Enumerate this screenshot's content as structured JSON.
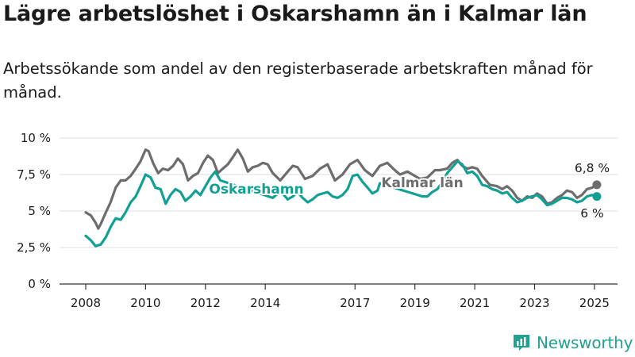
{
  "title": "Lägre arbetslöshet i Oskarshamn än i Kalmar län",
  "subtitle": "Arbetssökande som andel av den registerbaserade arbetskraften månad för månad.",
  "brand": {
    "name": "Newsworthy",
    "icon": "bar-chart-logo-icon",
    "color": "#22a090"
  },
  "colors": {
    "oskarshamn": "#13a094",
    "kalmar": "#6d6d6d",
    "grid": "#dcdcdc",
    "axis": "#333333"
  },
  "chart_data": {
    "type": "line",
    "title": "Lägre arbetslöshet i Oskarshamn än i Kalmar län",
    "subtitle": "Arbetssökande som andel av den registerbaserade arbetskraften månad för månad.",
    "xlabel": "",
    "ylabel": "",
    "x_range": [
      2008.0,
      2025.25
    ],
    "ylim": [
      0,
      10
    ],
    "y_ticks": [
      0,
      2.5,
      5,
      7.5,
      10
    ],
    "y_tick_labels": [
      "0 %",
      "2,5 %",
      "5 %",
      "7,5 %",
      "10 %"
    ],
    "x_ticks": [
      2008,
      2010,
      2012,
      2014,
      2017,
      2019,
      2021,
      2023,
      2025
    ],
    "x_tick_labels": [
      "2008",
      "2010",
      "2012",
      "2014",
      "2017",
      "2019",
      "2021",
      "2023",
      "2025"
    ],
    "grid": true,
    "legend": "inline labels",
    "series": [
      {
        "name": "Kalmar län",
        "color": "#6d6d6d",
        "end_label": "6,8 %",
        "points": [
          [
            2008.0,
            4.9
          ],
          [
            2008.17,
            4.7
          ],
          [
            2008.33,
            4.2
          ],
          [
            2008.42,
            3.8
          ],
          [
            2008.5,
            4.1
          ],
          [
            2008.67,
            4.9
          ],
          [
            2008.83,
            5.6
          ],
          [
            2009.0,
            6.6
          ],
          [
            2009.17,
            7.1
          ],
          [
            2009.33,
            7.1
          ],
          [
            2009.5,
            7.4
          ],
          [
            2009.67,
            7.9
          ],
          [
            2009.83,
            8.4
          ],
          [
            2010.0,
            9.2
          ],
          [
            2010.1,
            9.1
          ],
          [
            2010.25,
            8.3
          ],
          [
            2010.42,
            7.6
          ],
          [
            2010.58,
            7.9
          ],
          [
            2010.75,
            7.8
          ],
          [
            2010.92,
            8.1
          ],
          [
            2011.08,
            8.6
          ],
          [
            2011.25,
            8.2
          ],
          [
            2011.42,
            7.1
          ],
          [
            2011.58,
            7.4
          ],
          [
            2011.75,
            7.6
          ],
          [
            2011.92,
            8.3
          ],
          [
            2012.08,
            8.8
          ],
          [
            2012.25,
            8.5
          ],
          [
            2012.42,
            7.6
          ],
          [
            2012.58,
            7.9
          ],
          [
            2012.75,
            8.2
          ],
          [
            2012.92,
            8.7
          ],
          [
            2013.08,
            9.2
          ],
          [
            2013.25,
            8.6
          ],
          [
            2013.42,
            7.7
          ],
          [
            2013.58,
            8.0
          ],
          [
            2013.75,
            8.1
          ],
          [
            2013.92,
            8.3
          ],
          [
            2014.08,
            8.2
          ],
          [
            2014.25,
            7.6
          ],
          [
            2014.5,
            7.1
          ],
          [
            2014.75,
            7.7
          ],
          [
            2014.92,
            8.1
          ],
          [
            2015.08,
            8.0
          ],
          [
            2015.33,
            7.2
          ],
          [
            2015.58,
            7.4
          ],
          [
            2015.83,
            7.9
          ],
          [
            2016.08,
            8.2
          ],
          [
            2016.33,
            7.1
          ],
          [
            2016.58,
            7.5
          ],
          [
            2016.83,
            8.2
          ],
          [
            2017.08,
            8.5
          ],
          [
            2017.33,
            7.8
          ],
          [
            2017.58,
            7.4
          ],
          [
            2017.83,
            8.1
          ],
          [
            2018.08,
            8.3
          ],
          [
            2018.33,
            7.8
          ],
          [
            2018.5,
            7.5
          ],
          [
            2018.75,
            7.7
          ],
          [
            2018.92,
            7.5
          ],
          [
            2019.17,
            7.2
          ],
          [
            2019.42,
            7.3
          ],
          [
            2019.67,
            7.8
          ],
          [
            2019.83,
            7.8
          ],
          [
            2020.08,
            7.9
          ],
          [
            2020.25,
            8.3
          ],
          [
            2020.42,
            8.5
          ],
          [
            2020.58,
            8.1
          ],
          [
            2020.75,
            7.9
          ],
          [
            2020.92,
            8.0
          ],
          [
            2021.08,
            7.9
          ],
          [
            2021.25,
            7.4
          ],
          [
            2021.5,
            6.8
          ],
          [
            2021.75,
            6.7
          ],
          [
            2021.92,
            6.5
          ],
          [
            2022.08,
            6.7
          ],
          [
            2022.25,
            6.4
          ],
          [
            2022.42,
            5.9
          ],
          [
            2022.58,
            5.7
          ],
          [
            2022.75,
            6.0
          ],
          [
            2022.92,
            5.9
          ],
          [
            2023.08,
            6.2
          ],
          [
            2023.25,
            6.0
          ],
          [
            2023.42,
            5.5
          ],
          [
            2023.58,
            5.6
          ],
          [
            2023.75,
            5.9
          ],
          [
            2023.92,
            6.1
          ],
          [
            2024.08,
            6.4
          ],
          [
            2024.25,
            6.3
          ],
          [
            2024.42,
            5.9
          ],
          [
            2024.58,
            6.1
          ],
          [
            2024.75,
            6.5
          ],
          [
            2024.92,
            6.6
          ],
          [
            2025.08,
            6.8
          ]
        ]
      },
      {
        "name": "Oskarshamn",
        "color": "#13a094",
        "end_label": "6 %",
        "points": [
          [
            2008.0,
            3.3
          ],
          [
            2008.17,
            3.0
          ],
          [
            2008.33,
            2.6
          ],
          [
            2008.5,
            2.7
          ],
          [
            2008.67,
            3.2
          ],
          [
            2008.83,
            3.9
          ],
          [
            2009.0,
            4.5
          ],
          [
            2009.17,
            4.4
          ],
          [
            2009.33,
            4.9
          ],
          [
            2009.5,
            5.6
          ],
          [
            2009.67,
            6.0
          ],
          [
            2009.83,
            6.7
          ],
          [
            2010.0,
            7.5
          ],
          [
            2010.17,
            7.3
          ],
          [
            2010.33,
            6.6
          ],
          [
            2010.5,
            6.5
          ],
          [
            2010.67,
            5.5
          ],
          [
            2010.83,
            6.1
          ],
          [
            2011.0,
            6.5
          ],
          [
            2011.17,
            6.3
          ],
          [
            2011.33,
            5.7
          ],
          [
            2011.5,
            6.0
          ],
          [
            2011.67,
            6.4
          ],
          [
            2011.83,
            6.1
          ],
          [
            2012.0,
            6.7
          ],
          [
            2012.17,
            7.3
          ],
          [
            2012.33,
            7.7
          ],
          [
            2012.5,
            7.1
          ],
          [
            2014.25,
            5.9
          ],
          [
            2014.42,
            6.2
          ],
          [
            2014.58,
            6.2
          ],
          [
            2014.75,
            5.8
          ],
          [
            2014.92,
            6.0
          ],
          [
            2015.08,
            6.3
          ],
          [
            2015.25,
            5.9
          ],
          [
            2015.42,
            5.6
          ],
          [
            2015.58,
            5.8
          ],
          [
            2015.75,
            6.1
          ],
          [
            2015.92,
            6.2
          ],
          [
            2016.08,
            6.3
          ],
          [
            2016.25,
            6.0
          ],
          [
            2016.42,
            5.9
          ],
          [
            2016.58,
            6.1
          ],
          [
            2016.75,
            6.5
          ],
          [
            2016.92,
            7.4
          ],
          [
            2017.08,
            7.5
          ],
          [
            2017.25,
            7.0
          ],
          [
            2017.42,
            6.6
          ],
          [
            2017.58,
            6.2
          ],
          [
            2017.75,
            6.4
          ],
          [
            2017.83,
            6.9
          ],
          [
            2019.25,
            6.0
          ],
          [
            2019.42,
            6.0
          ],
          [
            2019.58,
            6.3
          ],
          [
            2019.75,
            6.5
          ],
          [
            2019.92,
            7.0
          ],
          [
            2020.08,
            7.6
          ],
          [
            2020.25,
            8.0
          ],
          [
            2020.42,
            8.4
          ],
          [
            2020.58,
            8.2
          ],
          [
            2020.75,
            7.6
          ],
          [
            2020.92,
            7.7
          ],
          [
            2021.08,
            7.4
          ],
          [
            2021.25,
            6.8
          ],
          [
            2021.42,
            6.7
          ],
          [
            2021.58,
            6.5
          ],
          [
            2021.75,
            6.4
          ],
          [
            2021.92,
            6.2
          ],
          [
            2022.08,
            6.3
          ],
          [
            2022.25,
            5.9
          ],
          [
            2022.42,
            5.6
          ],
          [
            2022.58,
            5.7
          ],
          [
            2022.75,
            5.9
          ],
          [
            2022.92,
            6.0
          ],
          [
            2023.08,
            6.1
          ],
          [
            2023.25,
            5.8
          ],
          [
            2023.42,
            5.4
          ],
          [
            2023.58,
            5.5
          ],
          [
            2023.75,
            5.7
          ],
          [
            2023.92,
            5.9
          ],
          [
            2024.08,
            5.9
          ],
          [
            2024.25,
            5.8
          ],
          [
            2024.42,
            5.6
          ],
          [
            2024.58,
            5.7
          ],
          [
            2024.75,
            6.0
          ],
          [
            2024.92,
            6.1
          ],
          [
            2025.08,
            6.0
          ]
        ]
      }
    ]
  }
}
